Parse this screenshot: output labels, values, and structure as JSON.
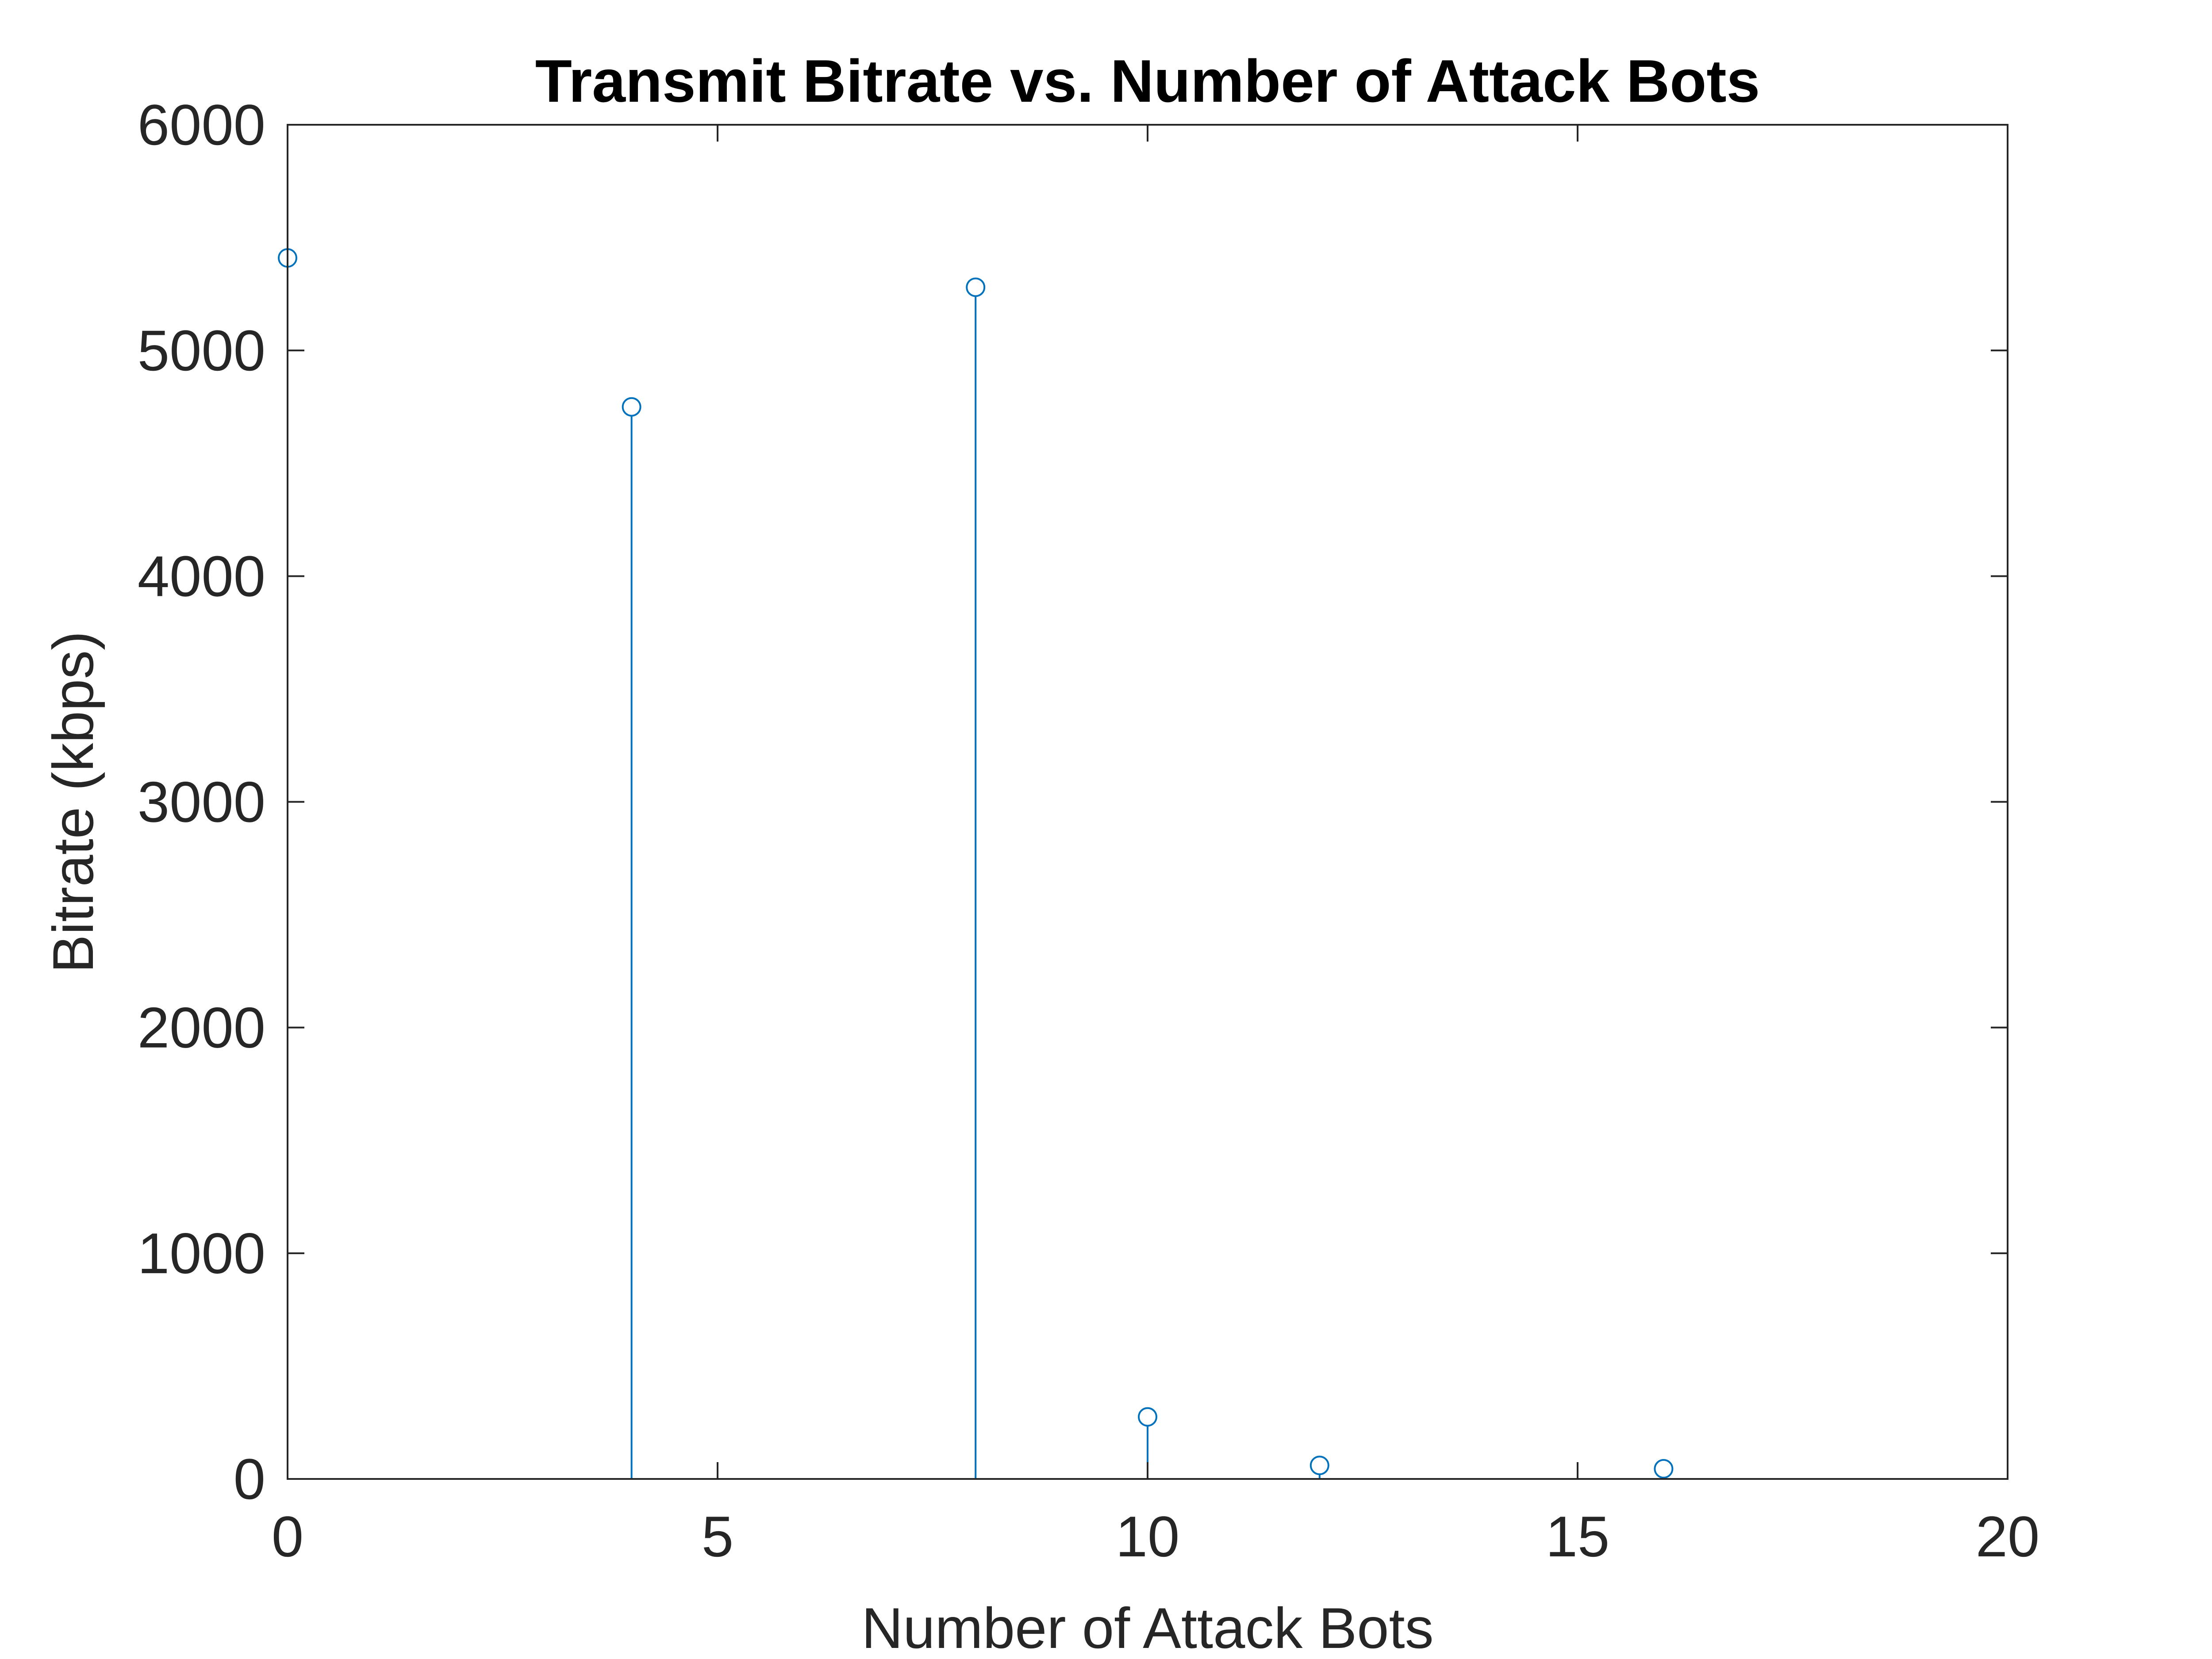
{
  "chart_data": {
    "type": "stem",
    "title": "Transmit Bitrate vs. Number of Attack Bots",
    "xlabel": "Number of Attack Bots",
    "ylabel": "Bitrate (kbps)",
    "xlim": [
      0,
      20
    ],
    "ylim": [
      0,
      6000
    ],
    "xticks": [
      0,
      5,
      10,
      15,
      20
    ],
    "yticks": [
      0,
      1000,
      2000,
      3000,
      4000,
      5000,
      6000
    ],
    "grid": false,
    "series": [
      {
        "color": "#0072BD",
        "marker": "circle-open",
        "x": [
          0,
          4,
          8,
          10,
          12,
          16
        ],
        "y": [
          5410,
          4750,
          5280,
          275,
          60,
          45
        ]
      }
    ]
  }
}
